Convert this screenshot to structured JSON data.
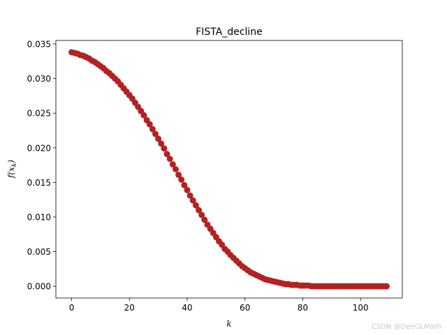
{
  "chart_data": {
    "type": "scatter",
    "title": "FISTA_decline",
    "xlabel": "k",
    "ylabel_func": "f(x",
    "ylabel_sub": "k",
    "ylabel_close": ")",
    "xlim": [
      -5.45,
      114.45
    ],
    "ylim": [
      -0.0017,
      0.0355
    ],
    "xticks": [
      0,
      20,
      40,
      60,
      80,
      100
    ],
    "yticks": [
      0.0,
      0.005,
      0.01,
      0.015,
      0.02,
      0.025,
      0.03,
      0.035
    ],
    "xtick_labels": [
      "0",
      "20",
      "40",
      "60",
      "80",
      "100"
    ],
    "ytick_labels": [
      "0.000",
      "0.005",
      "0.010",
      "0.015",
      "0.020",
      "0.025",
      "0.030",
      "0.035"
    ],
    "marker_color": "#b22222",
    "grid": false,
    "series": [
      {
        "x": [
          0,
          1,
          2,
          3,
          4,
          5,
          6,
          7,
          8,
          9,
          10,
          11,
          12,
          13,
          14,
          15,
          16,
          17,
          18,
          19,
          20,
          21,
          22,
          23,
          24,
          25,
          26,
          27,
          28,
          29,
          30,
          31,
          32,
          33,
          34,
          35,
          36,
          37,
          38,
          39,
          40,
          41,
          42,
          43,
          44,
          45,
          46,
          47,
          48,
          49,
          50,
          51,
          52,
          53,
          54,
          55,
          56,
          57,
          58,
          59,
          60,
          61,
          62,
          63,
          64,
          65,
          66,
          67,
          68,
          69,
          70,
          71,
          72,
          73,
          74,
          75,
          76,
          77,
          78,
          79,
          80,
          81,
          82,
          83,
          84,
          85,
          86,
          87,
          88,
          89,
          90,
          91,
          92,
          93,
          94,
          95,
          96,
          97,
          98,
          99,
          100,
          101,
          102,
          103,
          104,
          105,
          106,
          107,
          108,
          109
        ],
        "values": [
          0.0338,
          0.0337,
          0.0336,
          0.0334,
          0.0333,
          0.0331,
          0.0329,
          0.0326,
          0.0324,
          0.0321,
          0.0318,
          0.0315,
          0.0311,
          0.0308,
          0.0304,
          0.03,
          0.0296,
          0.0291,
          0.0286,
          0.0281,
          0.0276,
          0.0271,
          0.0265,
          0.0259,
          0.0253,
          0.0247,
          0.024,
          0.0234,
          0.0227,
          0.022,
          0.0213,
          0.0206,
          0.0199,
          0.0191,
          0.0184,
          0.0176,
          0.0169,
          0.0161,
          0.0154,
          0.0146,
          0.0139,
          0.0131,
          0.0124,
          0.0117,
          0.011,
          0.0103,
          0.0096,
          0.0089,
          0.0083,
          0.0077,
          0.0071,
          0.0065,
          0.006,
          0.0054,
          0.005,
          0.0045,
          0.0041,
          0.0037,
          0.0033,
          0.0029,
          0.0026,
          0.0023,
          0.002,
          0.0018,
          0.0016,
          0.0014,
          0.0012,
          0.001,
          0.0009,
          0.0008,
          0.0007,
          0.0006,
          0.0005,
          0.0004,
          0.0003,
          0.0003,
          0.0002,
          0.0002,
          0.0002,
          0.0001,
          0.0001,
          0.0001,
          0.0001,
          0.0,
          0.0,
          0.0,
          0.0,
          0.0,
          0.0,
          0.0,
          0.0,
          0.0,
          0.0,
          0.0,
          0.0,
          0.0,
          0.0,
          0.0,
          0.0,
          0.0,
          0.0,
          0.0,
          0.0,
          0.0,
          0.0,
          0.0,
          0.0,
          0.0,
          0.0,
          0.0
        ]
      }
    ]
  },
  "watermark": "CSDN @DeeGLMath"
}
